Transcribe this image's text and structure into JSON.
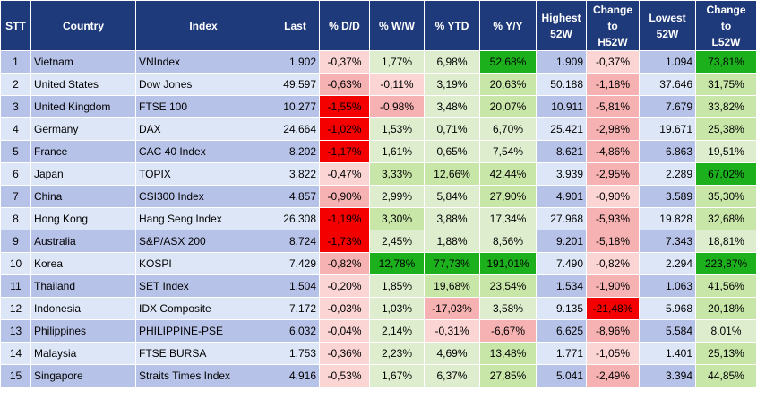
{
  "headers": [
    "STT",
    "Country",
    "Index",
    "Last",
    "% D/D",
    "% W/W",
    "% YTD",
    "% Y/Y",
    "Highest 52W",
    "Change to H52W",
    "Lowest 52W",
    "Change to L52W"
  ],
  "header_lines": [
    [
      "STT"
    ],
    [
      "Country"
    ],
    [
      "Index"
    ],
    [
      "Last"
    ],
    [
      "% D/D"
    ],
    [
      "% W/W"
    ],
    [
      "% YTD"
    ],
    [
      "% Y/Y"
    ],
    [
      "Highest",
      "52W"
    ],
    [
      "Change",
      "to",
      "H52W"
    ],
    [
      "Lowest",
      "52W"
    ],
    [
      "Change",
      "to",
      "L52W"
    ]
  ],
  "colors": {
    "header_bg": "#1f3a7a",
    "row_odd": "#b7c2e8",
    "row_even": "#dde6f7",
    "strong_green": "#1cb11c",
    "green": "#c8e6a8",
    "light_green": "#ddedcd",
    "strong_red": "#f40000",
    "red": "#f6b2b2",
    "light_red": "#fbd4d4"
  },
  "rows": [
    {
      "cells": [
        "1",
        "Vietnam",
        "VNIndex",
        "1.902",
        "-0,37%",
        "1,77%",
        "6,98%",
        "52,68%",
        "1.909",
        "-0,37%",
        "1.094",
        "73,81%"
      ],
      "tones": [
        "",
        "",
        "",
        "",
        "light_red",
        "light_green",
        "light_green",
        "strong_green",
        "",
        "light_red",
        "",
        "strong_green"
      ]
    },
    {
      "cells": [
        "2",
        "United States",
        "Dow Jones",
        "49.597",
        "-0,63%",
        "-0,11%",
        "3,19%",
        "20,63%",
        "50.188",
        "-1,18%",
        "37.646",
        "31,75%"
      ],
      "tones": [
        "",
        "",
        "",
        "",
        "red",
        "light_red",
        "light_green",
        "green",
        "",
        "red",
        "",
        "green"
      ]
    },
    {
      "cells": [
        "3",
        "United Kingdom",
        "FTSE 100",
        "10.277",
        "-1,55%",
        "-0,98%",
        "3,48%",
        "20,07%",
        "10.911",
        "-5,81%",
        "7.679",
        "33,82%"
      ],
      "tones": [
        "",
        "",
        "",
        "",
        "strong_red",
        "red",
        "light_green",
        "green",
        "",
        "red",
        "",
        "green"
      ]
    },
    {
      "cells": [
        "4",
        "Germany",
        "DAX",
        "24.664",
        "-1,02%",
        "1,53%",
        "0,71%",
        "6,70%",
        "25.421",
        "-2,98%",
        "19.671",
        "25,38%"
      ],
      "tones": [
        "",
        "",
        "",
        "",
        "strong_red",
        "light_green",
        "light_green",
        "light_green",
        "",
        "red",
        "",
        "green"
      ]
    },
    {
      "cells": [
        "5",
        "France",
        "CAC 40 Index",
        "8.202",
        "-1,17%",
        "1,61%",
        "0,65%",
        "7,54%",
        "8.621",
        "-4,86%",
        "6.863",
        "19,51%"
      ],
      "tones": [
        "",
        "",
        "",
        "",
        "strong_red",
        "light_green",
        "light_green",
        "light_green",
        "",
        "red",
        "",
        "light_green"
      ]
    },
    {
      "cells": [
        "6",
        "Japan",
        "TOPIX",
        "3.822",
        "-0,47%",
        "3,33%",
        "12,66%",
        "42,44%",
        "3.939",
        "-2,95%",
        "2.289",
        "67,02%"
      ],
      "tones": [
        "",
        "",
        "",
        "",
        "light_red",
        "green",
        "green",
        "green",
        "",
        "red",
        "",
        "strong_green"
      ]
    },
    {
      "cells": [
        "7",
        "China",
        "CSI300 Index",
        "4.857",
        "-0,90%",
        "2,99%",
        "5,84%",
        "27,90%",
        "4.901",
        "-0,90%",
        "3.589",
        "35,30%"
      ],
      "tones": [
        "",
        "",
        "",
        "",
        "red",
        "light_green",
        "light_green",
        "green",
        "",
        "light_red",
        "",
        "green"
      ]
    },
    {
      "cells": [
        "8",
        "Hong Kong",
        "Hang Seng Index",
        "26.308",
        "-1,19%",
        "3,30%",
        "3,88%",
        "17,34%",
        "27.968",
        "-5,93%",
        "19.828",
        "32,68%"
      ],
      "tones": [
        "",
        "",
        "",
        "",
        "strong_red",
        "green",
        "light_green",
        "light_green",
        "",
        "red",
        "",
        "green"
      ]
    },
    {
      "cells": [
        "9",
        "Australia",
        "S&P/ASX 200",
        "8.724",
        "-1,73%",
        "2,45%",
        "1,88%",
        "8,56%",
        "9.201",
        "-5,18%",
        "7.343",
        "18,81%"
      ],
      "tones": [
        "",
        "",
        "",
        "",
        "strong_red",
        "light_green",
        "light_green",
        "light_green",
        "",
        "red",
        "",
        "light_green"
      ]
    },
    {
      "cells": [
        "10",
        "Korea",
        "KOSPI",
        "7.429",
        "-0,82%",
        "12,78%",
        "77,73%",
        "191,01%",
        "7.490",
        "-0,82%",
        "2.294",
        "223,87%"
      ],
      "tones": [
        "",
        "",
        "",
        "",
        "red",
        "strong_green",
        "strong_green",
        "strong_green",
        "",
        "light_red",
        "",
        "strong_green"
      ]
    },
    {
      "cells": [
        "11",
        "Thailand",
        "SET Index",
        "1.504",
        "-0,20%",
        "1,85%",
        "19,68%",
        "23,54%",
        "1.534",
        "-1,90%",
        "1.063",
        "41,56%"
      ],
      "tones": [
        "",
        "",
        "",
        "",
        "light_red",
        "light_green",
        "green",
        "green",
        "",
        "red",
        "",
        "green"
      ]
    },
    {
      "cells": [
        "12",
        "Indonesia",
        "IDX Composite",
        "7.172",
        "-0,03%",
        "1,03%",
        "-17,03%",
        "3,58%",
        "9.135",
        "-21,48%",
        "5.968",
        "20,18%"
      ],
      "tones": [
        "",
        "",
        "",
        "",
        "light_red",
        "light_green",
        "red",
        "light_green",
        "",
        "strong_red",
        "",
        "green"
      ]
    },
    {
      "cells": [
        "13",
        "Philippines",
        "PHILIPPINE-PSE",
        "6.032",
        "-0,04%",
        "2,14%",
        "-0,31%",
        "-6,67%",
        "6.625",
        "-8,96%",
        "5.584",
        "8,01%"
      ],
      "tones": [
        "",
        "",
        "",
        "",
        "light_red",
        "light_green",
        "light_red",
        "red",
        "",
        "red",
        "",
        "light_green"
      ]
    },
    {
      "cells": [
        "14",
        "Malaysia",
        "FTSE BURSA",
        "1.753",
        "-0,36%",
        "2,23%",
        "4,69%",
        "13,48%",
        "1.771",
        "-1,05%",
        "1.401",
        "25,13%"
      ],
      "tones": [
        "",
        "",
        "",
        "",
        "light_red",
        "light_green",
        "light_green",
        "green",
        "",
        "light_red",
        "",
        "green"
      ]
    },
    {
      "cells": [
        "15",
        "Singapore",
        "Straits Times Index",
        "4.916",
        "-0,53%",
        "1,67%",
        "6,37%",
        "27,85%",
        "5.041",
        "-2,49%",
        "3.394",
        "44,85%"
      ],
      "tones": [
        "",
        "",
        "",
        "",
        "light_red",
        "light_green",
        "light_green",
        "green",
        "",
        "red",
        "",
        "green"
      ]
    }
  ]
}
